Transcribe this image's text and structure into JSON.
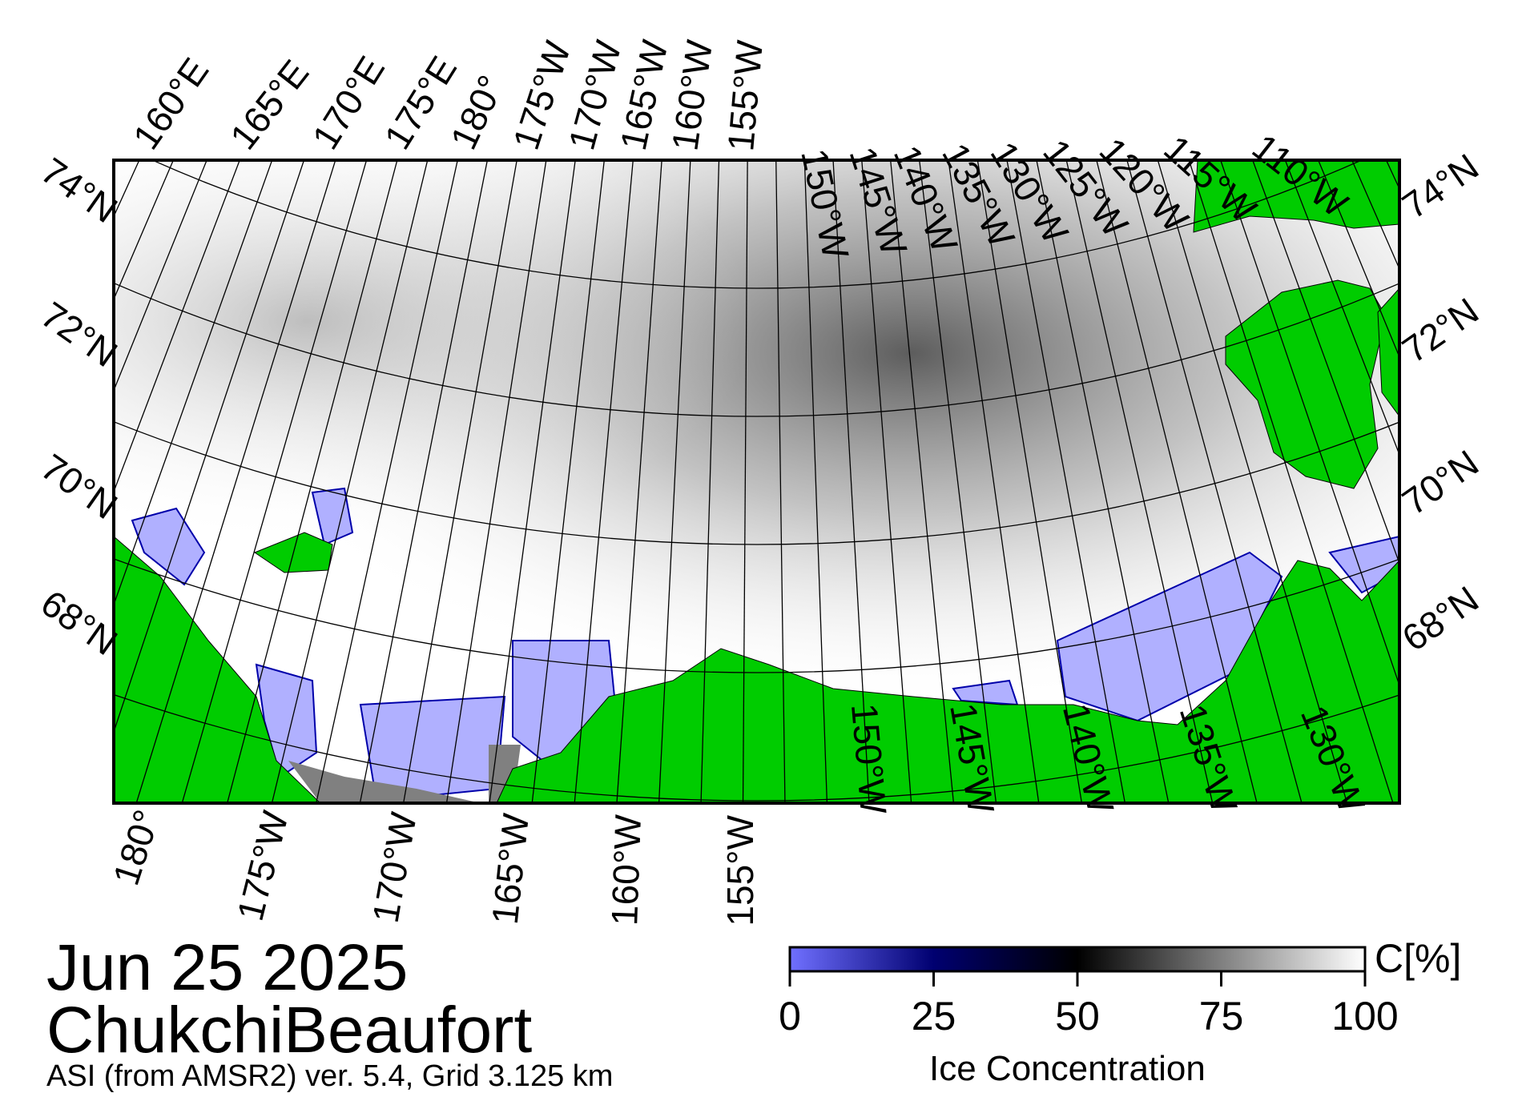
{
  "header": {
    "date": "Jun 25 2025",
    "region": "ChukchiBeaufort",
    "source_line": "ASI (from AMSR2) ver. 5.4,  Grid 3.125 km"
  },
  "map": {
    "top_lon_labels": [
      "160°E",
      "165°E",
      "170°E",
      "175°E",
      "180°",
      "175°W",
      "170°W",
      "165°W",
      "160°W",
      "155°W",
      "150°W",
      "145°W",
      "140°W",
      "135°W",
      "130°W",
      "125°W",
      "120°W",
      "115°W",
      "110°W"
    ],
    "bottom_lon_labels": [
      "180°",
      "175°W",
      "170°W",
      "165°W",
      "160°W",
      "155°W",
      "150°W",
      "145°W",
      "140°W",
      "135°W",
      "130°W"
    ],
    "left_lat_labels": [
      "74°N",
      "72°N",
      "70°N",
      "68°N"
    ],
    "right_lat_labels": [
      "74°N",
      "72°N",
      "70°N",
      "68°N"
    ],
    "colors": {
      "land": "#00cc00",
      "coast_gray": "#808080",
      "open_water": "#b0b0ff"
    }
  },
  "colorbar": {
    "unit": "C[%]",
    "title": "Ice Concentration",
    "ticks": [
      "0",
      "25",
      "50",
      "75",
      "100"
    ],
    "stops": [
      {
        "value": 0,
        "color": "#7070ff"
      },
      {
        "value": 25,
        "color": "#000070"
      },
      {
        "value": 50,
        "color": "#000000"
      },
      {
        "value": 100,
        "color": "#ffffff"
      }
    ]
  }
}
